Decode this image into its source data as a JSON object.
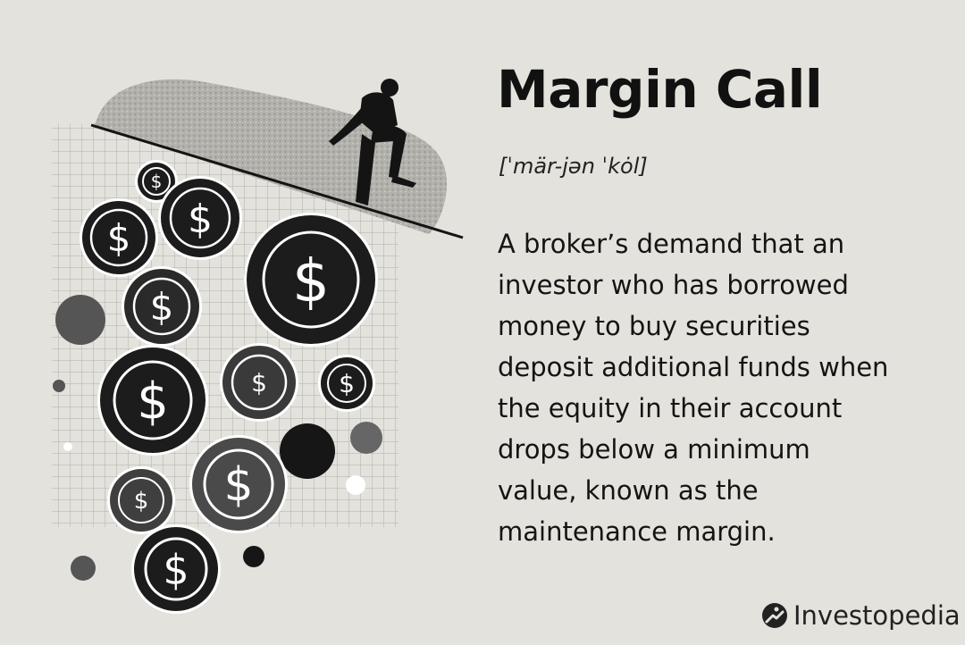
{
  "term": {
    "title": "Margin Call",
    "pronunciation": "[ˈmär-jən ˈkȯl]",
    "definition_lines": [
      "A broker’s demand that an",
      "investor who has borrowed",
      "money to buy securities",
      "deposit additional funds when",
      "the equity in their account",
      "drops below a minimum",
      "value, known as the",
      "maintenance margin."
    ]
  },
  "coin_symbol": "$",
  "brand": {
    "name": "Investopedia",
    "logo_icon": "investopedia-logo-icon"
  },
  "colors": {
    "background": "#e4e2dc",
    "ink": "#141414",
    "coin": "#1c1c1c"
  }
}
